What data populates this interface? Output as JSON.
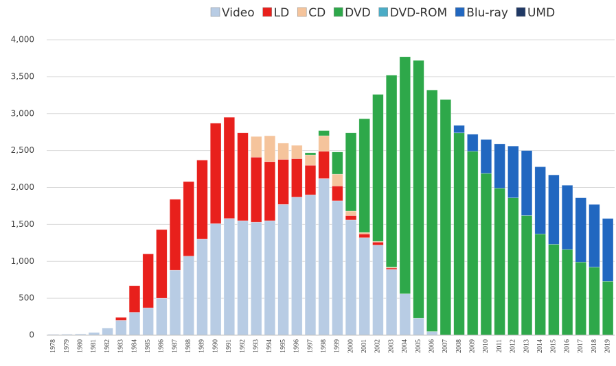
{
  "chart_data": {
    "type": "stacked_bar",
    "categories": [
      "1978",
      "1979",
      "1980",
      "1981",
      "1982",
      "1983",
      "1984",
      "1985",
      "1986",
      "1987",
      "1988",
      "1989",
      "1990",
      "1991",
      "1992",
      "1993",
      "1994",
      "1995",
      "1996",
      "1997",
      "1998",
      "1999",
      "2000",
      "2001",
      "2002",
      "2003",
      "2004",
      "2005",
      "2006",
      "2007",
      "2008",
      "2009",
      "2010",
      "2011",
      "2012",
      "2013",
      "2014",
      "2015",
      "2016",
      "2017",
      "2018",
      "2019"
    ],
    "series": [
      {
        "name": "Video",
        "color": "#b8cce4",
        "values": [
          10,
          12,
          15,
          35,
          95,
          200,
          310,
          370,
          500,
          880,
          1070,
          1300,
          1510,
          1580,
          1550,
          1530,
          1550,
          1770,
          1870,
          1900,
          2120,
          1820,
          1560,
          1320,
          1220,
          890,
          560,
          230,
          50,
          0,
          0,
          0,
          0,
          0,
          0,
          0,
          0,
          0,
          0,
          0,
          0,
          0
        ]
      },
      {
        "name": "LD",
        "color": "#e8201c",
        "values": [
          0,
          0,
          0,
          0,
          0,
          40,
          360,
          730,
          930,
          960,
          1010,
          1070,
          1360,
          1370,
          1190,
          880,
          800,
          610,
          520,
          400,
          370,
          200,
          60,
          50,
          40,
          20,
          0,
          0,
          0,
          0,
          0,
          0,
          0,
          0,
          0,
          0,
          0,
          0,
          0,
          0,
          0,
          0
        ]
      },
      {
        "name": "CD",
        "color": "#f5c49c",
        "values": [
          0,
          0,
          0,
          0,
          0,
          0,
          0,
          0,
          0,
          0,
          0,
          0,
          0,
          0,
          0,
          280,
          350,
          220,
          180,
          140,
          210,
          160,
          60,
          20,
          10,
          10,
          0,
          0,
          0,
          0,
          0,
          0,
          0,
          0,
          0,
          0,
          0,
          0,
          0,
          0,
          0,
          0
        ]
      },
      {
        "name": "DVD",
        "color": "#2ea84a",
        "values": [
          0,
          0,
          0,
          0,
          0,
          0,
          0,
          0,
          0,
          0,
          0,
          0,
          0,
          0,
          0,
          0,
          0,
          0,
          0,
          30,
          70,
          300,
          1060,
          1540,
          1990,
          2600,
          3210,
          3490,
          3270,
          3190,
          2740,
          2490,
          2190,
          1990,
          1860,
          1620,
          1370,
          1230,
          1160,
          990,
          920,
          730
        ]
      },
      {
        "name": "DVD-ROM",
        "color": "#4bacc6",
        "values": [
          0,
          0,
          0,
          0,
          0,
          0,
          0,
          0,
          0,
          0,
          0,
          0,
          0,
          0,
          0,
          0,
          0,
          0,
          0,
          0,
          0,
          0,
          0,
          0,
          0,
          0,
          0,
          0,
          0,
          0,
          0,
          0,
          0,
          0,
          0,
          0,
          0,
          0,
          0,
          0,
          0,
          0
        ]
      },
      {
        "name": "Blu-ray",
        "color": "#2167c0",
        "values": [
          0,
          0,
          0,
          0,
          0,
          0,
          0,
          0,
          0,
          0,
          0,
          0,
          0,
          0,
          0,
          0,
          0,
          0,
          0,
          0,
          0,
          0,
          0,
          0,
          0,
          0,
          0,
          0,
          0,
          0,
          100,
          230,
          460,
          600,
          700,
          880,
          910,
          940,
          870,
          870,
          850,
          850
        ]
      },
      {
        "name": "UMD",
        "color": "#1f3864",
        "values": [
          0,
          0,
          0,
          0,
          0,
          0,
          0,
          0,
          0,
          0,
          0,
          0,
          0,
          0,
          0,
          0,
          0,
          0,
          0,
          0,
          0,
          0,
          0,
          0,
          0,
          0,
          0,
          0,
          0,
          0,
          0,
          0,
          0,
          0,
          0,
          0,
          0,
          0,
          0,
          0,
          0,
          0
        ]
      }
    ],
    "ylim": [
      0,
      4000
    ],
    "yticks": [
      0,
      500,
      {
        "value": 1000,
        "label": "1,000"
      },
      {
        "value": 1500,
        "label": "1,500"
      },
      {
        "value": 2000,
        "label": "2,000"
      },
      {
        "value": 2500,
        "label": "2,500"
      },
      {
        "value": 3000,
        "label": "3,000"
      },
      {
        "value": 3500,
        "label": "3,500"
      },
      {
        "value": 4000,
        "label": "4,000"
      }
    ],
    "grid": true,
    "legend": "top-right"
  }
}
